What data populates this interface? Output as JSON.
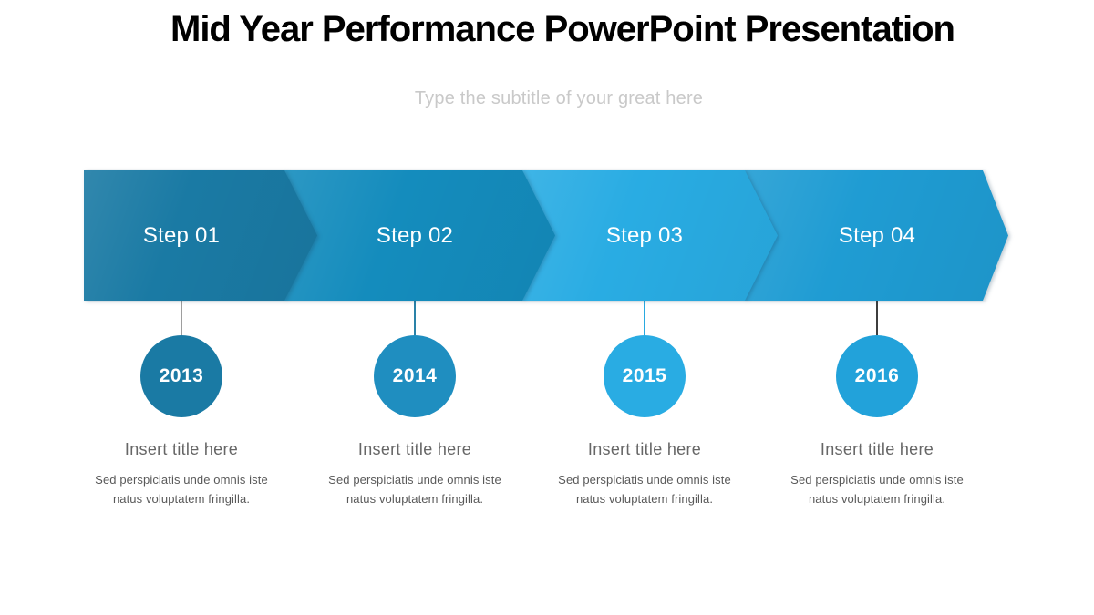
{
  "slide": {
    "title": "Mid Year Performance PowerPoint Presentation",
    "subtitle": "Type the subtitle of your great here"
  },
  "colors": {
    "title_text": "#000000",
    "subtitle_text": "#c9c9c9",
    "step_text": "#ffffff",
    "year_text": "#ffffff",
    "item_title_text": "#666666",
    "item_desc_text": "#595959"
  },
  "timeline": {
    "steps": [
      {
        "label": "Step 01",
        "year": "2013",
        "chevron_color": "#1a7aa4",
        "circle_color": "#1a7aa4",
        "connector_color": "#9e9e9e",
        "title": "Insert title here",
        "description": "Sed perspiciatis unde omnis iste natus voluptatem fringilla."
      },
      {
        "label": "Step 02",
        "year": "2014",
        "chevron_color": "#148cbd",
        "circle_color": "#1f8ec0",
        "connector_color": "#2a82a8",
        "title": "Insert title here",
        "description": "Sed perspiciatis unde omnis iste natus voluptatem fringilla."
      },
      {
        "label": "Step 03",
        "year": "2015",
        "chevron_color": "#29ace3",
        "circle_color": "#29ace3",
        "connector_color": "#29a9e0",
        "title": "Insert title here",
        "description": "Sed perspiciatis unde omnis iste natus voluptatem fringilla."
      },
      {
        "label": "Step 04",
        "year": "2016",
        "chevron_color": "#1f9cd3",
        "circle_color": "#22a2da",
        "connector_color": "#3d3d3d",
        "title": "Insert title here",
        "description": "Sed perspiciatis unde omnis iste natus voluptatem fringilla."
      }
    ]
  }
}
